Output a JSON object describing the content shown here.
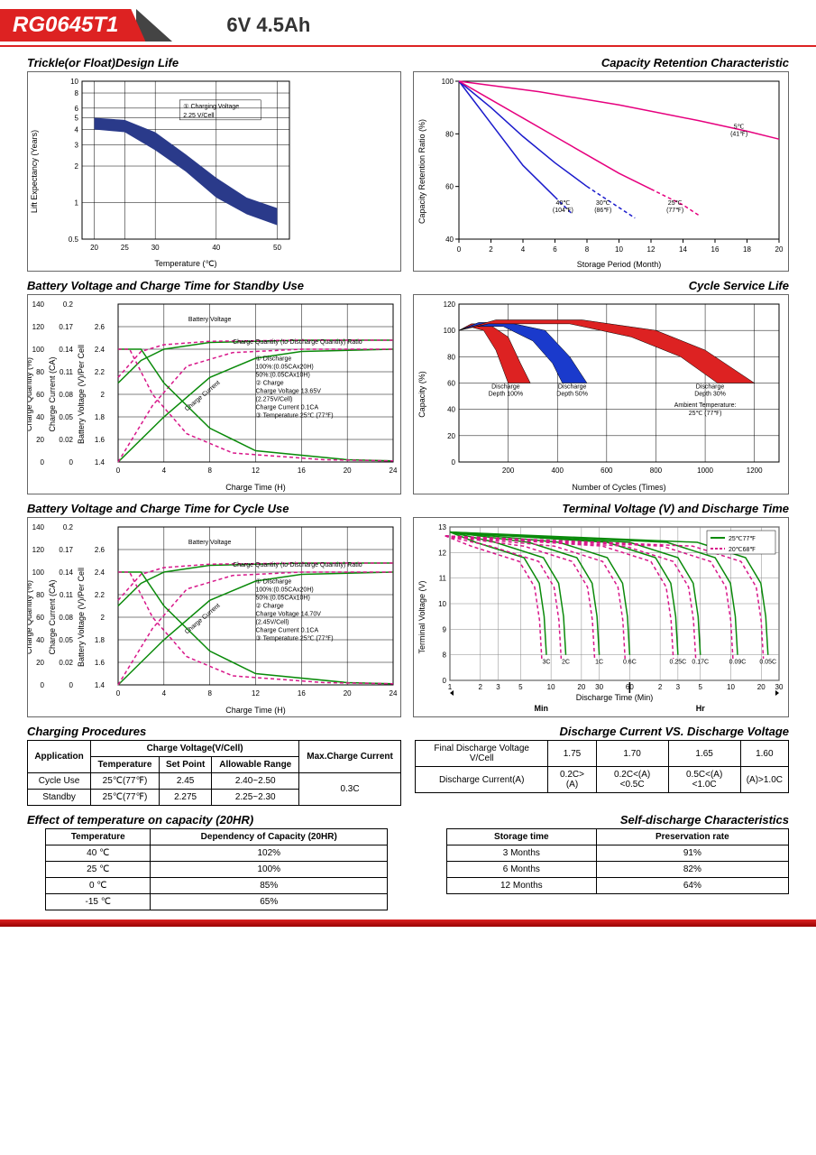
{
  "header": {
    "model": "RG0645T1",
    "rating": "6V  4.5Ah"
  },
  "charts": {
    "trickle": {
      "title": "Trickle(or Float)Design Life",
      "xlabel": "Temperature (℃)",
      "ylabel": "Lift Expectancy (Years)",
      "xticks": [
        20,
        25,
        30,
        40,
        50
      ],
      "yticks": [
        0.5,
        1,
        2,
        3,
        4,
        5,
        6,
        8,
        10
      ],
      "band_upper": [
        [
          20,
          5
        ],
        [
          25,
          4.8
        ],
        [
          30,
          3.8
        ],
        [
          35,
          2.5
        ],
        [
          40,
          1.6
        ],
        [
          45,
          1.1
        ],
        [
          50,
          0.9
        ]
      ],
      "band_lower": [
        [
          20,
          4
        ],
        [
          25,
          3.8
        ],
        [
          30,
          2.7
        ],
        [
          35,
          1.8
        ],
        [
          40,
          1.1
        ],
        [
          45,
          0.8
        ],
        [
          50,
          0.65
        ]
      ],
      "band_color": "#2a3a8a",
      "annotation": "① Charging Voltage\n2.25 V/Cell",
      "grid_color": "#000"
    },
    "retention": {
      "title": "Capacity Retention Characteristic",
      "xlabel": "Storage Period (Month)",
      "ylabel": "Capacity Retention Ratio (%)",
      "xticks": [
        0,
        2,
        4,
        6,
        8,
        10,
        12,
        14,
        16,
        18,
        20
      ],
      "yticks": [
        40,
        60,
        80,
        100
      ],
      "series": [
        {
          "name": "40℃ (104℉)",
          "color": "#1a1aCC",
          "data": [
            [
              0,
              100
            ],
            [
              2,
              84
            ],
            [
              4,
              68
            ],
            [
              6,
              56
            ],
            [
              7,
              50
            ]
          ],
          "dashed_from": 6,
          "label_at": [
            6.5,
            53
          ]
        },
        {
          "name": "30℃ (86℉)",
          "color": "#1a1aCC",
          "data": [
            [
              0,
              100
            ],
            [
              2,
              90
            ],
            [
              4,
              79
            ],
            [
              6,
              69
            ],
            [
              8,
              60
            ],
            [
              10,
              52
            ],
            [
              11,
              48
            ]
          ],
          "dashed_from": 8,
          "label_at": [
            9,
            53
          ]
        },
        {
          "name": "25℃ (77℉)",
          "color": "#e6007e",
          "data": [
            [
              0,
              100
            ],
            [
              2,
              93
            ],
            [
              4,
              86
            ],
            [
              6,
              79
            ],
            [
              8,
              72
            ],
            [
              10,
              65
            ],
            [
              12,
              59
            ],
            [
              14,
              53
            ],
            [
              15,
              49
            ]
          ],
          "dashed_from": 12,
          "label_at": [
            13.5,
            53
          ]
        },
        {
          "name": "5℃ (41℉)",
          "color": "#e6007e",
          "data": [
            [
              0,
              100
            ],
            [
              5,
              96
            ],
            [
              10,
              91
            ],
            [
              15,
              85
            ],
            [
              18,
              81
            ],
            [
              20,
              78
            ]
          ],
          "dashed_from": 20,
          "label_at": [
            17.5,
            82
          ]
        }
      ]
    },
    "standby": {
      "title": "Battery Voltage and Charge Time for Standby Use",
      "xlabel": "Charge Time (H)",
      "y1label": "Charge Quantity (%)",
      "y2label": "Charge Current (CA)",
      "y3label": "Battery Voltage (V)/Per Cell",
      "xticks": [
        0,
        4,
        8,
        12,
        16,
        20,
        24
      ],
      "y1ticks": [
        0,
        20,
        40,
        60,
        80,
        100,
        120,
        140
      ],
      "y2ticks": [
        0,
        0.02,
        0.05,
        0.08,
        0.11,
        0.14,
        0.17,
        0.2
      ],
      "y3ticks": [
        1.4,
        1.6,
        1.8,
        2.0,
        2.2,
        2.4,
        2.6
      ],
      "annotation_lines": [
        "① Discharge",
        "   100%:(0.05CAx20H)",
        "   50%:(0.05CAx10H)",
        "② Charge",
        "   Charge Voltage 13.65V",
        "   (2.275V/Cell)",
        "   Charge Current 0.1CA",
        "③ Temperature 25℃ (77℉)"
      ],
      "battery_voltage_label": "Battery Voltage",
      "charge_quantity_label": "Charge Quantity (to-Discharge Quantity) Ratio",
      "charge_current_label": "Charge Current",
      "solid_color": "#0a8a0a",
      "dashed_color": "#d8178a"
    },
    "cycle_life": {
      "title": "Cycle Service Life",
      "xlabel": "Number of Cycles (Times)",
      "ylabel": "Capacity (%)",
      "xticks": [
        200,
        400,
        600,
        800,
        1000,
        1200
      ],
      "yticks": [
        0,
        20,
        40,
        60,
        80,
        100,
        120
      ],
      "bands": [
        {
          "name": "Discharge Depth 100%",
          "color": "#d22",
          "upper": [
            [
              0,
              100
            ],
            [
              50,
              105
            ],
            [
              120,
              105
            ],
            [
              200,
              95
            ],
            [
              250,
              75
            ],
            [
              290,
              60
            ]
          ],
          "lower": [
            [
              0,
              100
            ],
            [
              40,
              103
            ],
            [
              100,
              100
            ],
            [
              150,
              85
            ],
            [
              180,
              70
            ],
            [
              200,
              60
            ]
          ],
          "label_at": [
            190,
            56
          ]
        },
        {
          "name": "Discharge Depth 50%",
          "color": "#1a3aCC",
          "upper": [
            [
              0,
              100
            ],
            [
              80,
              106
            ],
            [
              200,
              106
            ],
            [
              350,
              100
            ],
            [
              450,
              80
            ],
            [
              520,
              60
            ]
          ],
          "lower": [
            [
              0,
              100
            ],
            [
              60,
              103
            ],
            [
              180,
              103
            ],
            [
              300,
              92
            ],
            [
              380,
              75
            ],
            [
              420,
              60
            ]
          ],
          "label_at": [
            460,
            56
          ]
        },
        {
          "name": "Discharge Depth 30%",
          "color": "#d22",
          "upper": [
            [
              0,
              100
            ],
            [
              150,
              108
            ],
            [
              500,
              108
            ],
            [
              800,
              100
            ],
            [
              1000,
              85
            ],
            [
              1200,
              60
            ]
          ],
          "lower": [
            [
              0,
              100
            ],
            [
              120,
              105
            ],
            [
              450,
              105
            ],
            [
              700,
              95
            ],
            [
              900,
              80
            ],
            [
              1050,
              60
            ]
          ],
          "label_at": [
            1020,
            56
          ]
        }
      ],
      "ambient_note": "Ambient Temperature:\n25℃ (77℉)",
      "ambient_note_at": [
        1000,
        42
      ]
    },
    "cycle_charge": {
      "title": "Battery Voltage and Charge Time for Cycle Use",
      "xlabel": "Charge Time (H)",
      "annotation_lines": [
        "① Discharge",
        "   100%:(0.05CAx20H)",
        "   50%:(0.05CAx10H)",
        "② Charge",
        "   Charge Voltage 14.70V",
        "   (2.45V/Cell)",
        "   Charge Current 0.1CA",
        "③ Temperature 25℃ (77℉)"
      ],
      "solid_color": "#0a8a0a",
      "dashed_color": "#d8178a"
    },
    "discharge_time": {
      "title": "Terminal Voltage (V) and Discharge Time",
      "xlabel": "Discharge Time (Min)",
      "ylabel": "Terminal Voltage (V)",
      "yticks": [
        0,
        8,
        9,
        10,
        11,
        12,
        13
      ],
      "legend": [
        {
          "label": "25℃77℉",
          "color": "#0a8a0a",
          "dashed": false
        },
        {
          "label": "20℃68℉",
          "color": "#d8178a",
          "dashed": true
        }
      ],
      "rates": [
        "3C",
        "2C",
        "1C",
        "0.6C",
        "0.25C",
        "0.17C",
        "0.09C",
        "0.05C"
      ],
      "grid_color": "#888",
      "min_label": "Min",
      "hr_label": "Hr",
      "x_min_ticks": [
        1,
        2,
        3,
        5,
        10,
        20,
        30,
        60
      ],
      "x_hr_ticks": [
        2,
        3,
        5,
        10,
        20,
        30
      ]
    }
  },
  "charging_procedures": {
    "title": "Charging Procedures",
    "headers": {
      "app": "Application",
      "cv": "Charge Voltage(V/Cell)",
      "temp": "Temperature",
      "sp": "Set Point",
      "ar": "Allowable Range",
      "max": "Max.Charge Current"
    },
    "rows": [
      {
        "app": "Cycle Use",
        "temp": "25℃(77℉)",
        "sp": "2.45",
        "ar": "2.40~2.50"
      },
      {
        "app": "Standby",
        "temp": "25℃(77℉)",
        "sp": "2.275",
        "ar": "2.25~2.30"
      }
    ],
    "max_current": "0.3C"
  },
  "discharge_vs": {
    "title": "Discharge Current VS. Discharge Voltage",
    "headers": {
      "fdv": "Final Discharge Voltage V/Cell",
      "dc": "Discharge Current(A)"
    },
    "cols": [
      "1.75",
      "1.70",
      "1.65",
      "1.60"
    ],
    "vals": [
      "0.2C>(A)",
      "0.2C<(A)<0.5C",
      "0.5C<(A)<1.0C",
      "(A)>1.0C"
    ]
  },
  "temp_effect": {
    "title": "Effect of temperature on capacity (20HR)",
    "headers": {
      "t": "Temperature",
      "d": "Dependency of Capacity (20HR)"
    },
    "rows": [
      [
        "40 ℃",
        "102%"
      ],
      [
        "25 ℃",
        "100%"
      ],
      [
        "0 ℃",
        "85%"
      ],
      [
        "-15 ℃",
        "65%"
      ]
    ]
  },
  "self_discharge": {
    "title": "Self-discharge Characteristics",
    "headers": {
      "s": "Storage time",
      "p": "Preservation rate"
    },
    "rows": [
      [
        "3 Months",
        "91%"
      ],
      [
        "6 Months",
        "82%"
      ],
      [
        "12 Months",
        "64%"
      ]
    ]
  }
}
